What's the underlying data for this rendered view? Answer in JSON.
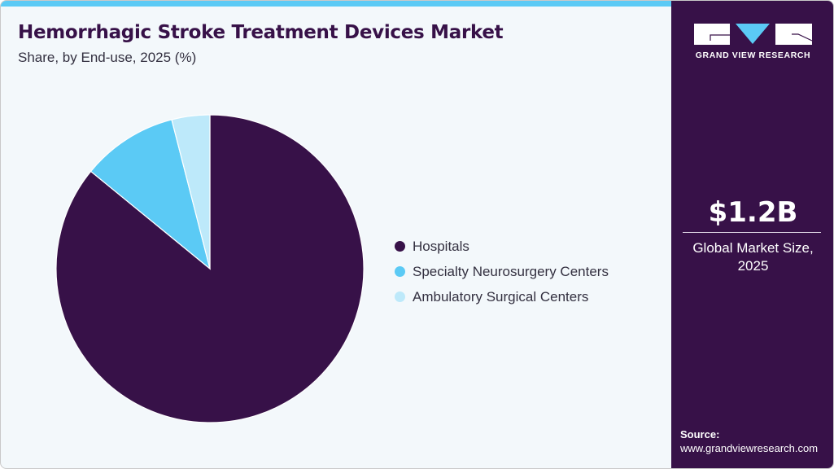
{
  "header": {
    "title": "Hemorrhagic Stroke Treatment Devices Market",
    "subtitle": "Share, by End-use, 2025 (%)"
  },
  "legend": {
    "items": [
      {
        "label": "Hospitals",
        "color": "#371148"
      },
      {
        "label": "Specialty Neurosurgery Centers",
        "color": "#5bcaf5"
      },
      {
        "label": "Ambulatory Surgical Centers",
        "color": "#bde9fa"
      }
    ]
  },
  "sidebar": {
    "brand": "GRAND VIEW RESEARCH",
    "market_size": "$1.2B",
    "market_label_line1": "Global Market Size,",
    "market_label_line2": "2025",
    "source_label": "Source:",
    "source_url": "www.grandviewresearch.com"
  },
  "colors": {
    "primary": "#371148",
    "accent": "#5bcaf5",
    "light_accent": "#bde9fa",
    "background": "#f3f8fb"
  },
  "chart_data": {
    "type": "pie",
    "title": "Hemorrhagic Stroke Treatment Devices Market",
    "subtitle": "Share, by End-use, 2025 (%)",
    "categories": [
      "Hospitals",
      "Specialty Neurosurgery Centers",
      "Ambulatory Surgical Centers"
    ],
    "values": [
      85.9,
      10.1,
      4.0
    ],
    "colors": [
      "#371148",
      "#5bcaf5",
      "#bde9fa"
    ],
    "start_angle": "12 o'clock, clockwise",
    "legend_position": "right",
    "annotation": {
      "value": "$1.2B",
      "label": "Global Market Size, 2025"
    }
  }
}
